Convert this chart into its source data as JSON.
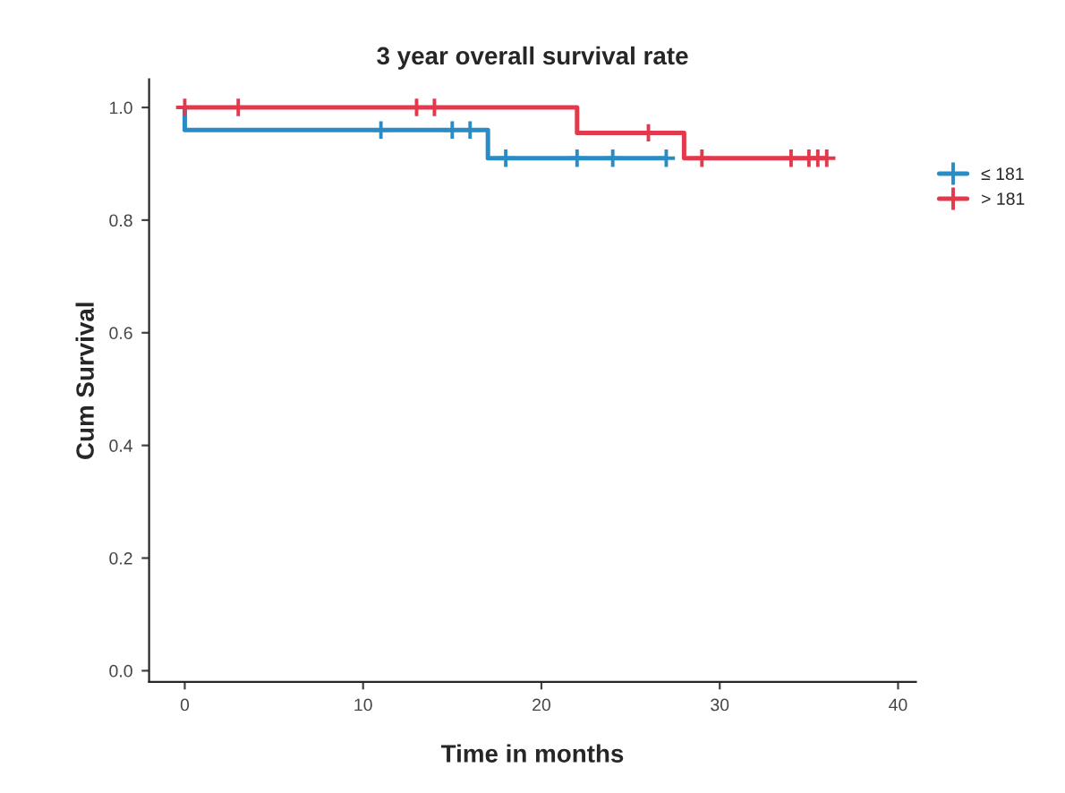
{
  "chart_data": {
    "type": "step",
    "title": "3 year overall survival rate",
    "xlabel": "Time in months",
    "ylabel": "Cum Survival",
    "series": [
      {
        "name": "≤ 181",
        "color": "#2a8cc4",
        "x": [
          0,
          0,
          17,
          27
        ],
        "values": [
          1.0,
          0.96,
          0.91,
          0.91
        ]
      },
      {
        "name": "> 181",
        "color": "#e23a4c",
        "x": [
          0,
          22,
          28,
          36
        ],
        "values": [
          1.0,
          0.955,
          0.91,
          0.91
        ]
      },
      {
        "type": "scatter",
        "color": "#2a8cc4",
        "marker": "cross",
        "x": [
          11,
          15,
          16,
          18,
          22,
          24,
          27
        ],
        "values": [
          0.96,
          0.96,
          0.96,
          0.91,
          0.91,
          0.91,
          0.91
        ]
      },
      {
        "type": "scatter",
        "color": "#e23a4c",
        "marker": "cross",
        "x": [
          0,
          3,
          13,
          14,
          26,
          29,
          34,
          35,
          35.5,
          36
        ],
        "values": [
          1.0,
          1.0,
          1.0,
          1.0,
          0.955,
          0.91,
          0.91,
          0.91,
          0.91,
          0.91
        ]
      }
    ],
    "xlim": [
      -2,
      41
    ],
    "xticks": [
      0,
      10,
      20,
      30,
      40
    ],
    "ylim": [
      -0.02,
      1.05
    ],
    "yticks": [
      {
        "value": 0,
        "label": "0.0"
      },
      {
        "value": 0.2,
        "label": "0.2"
      },
      {
        "value": 0.4,
        "label": "0.4"
      },
      {
        "value": 0.6,
        "label": "0.6"
      },
      {
        "value": 0.8,
        "label": "0.8"
      },
      {
        "value": 1.0,
        "label": "1.0"
      }
    ],
    "legend": "right",
    "grid": false
  }
}
